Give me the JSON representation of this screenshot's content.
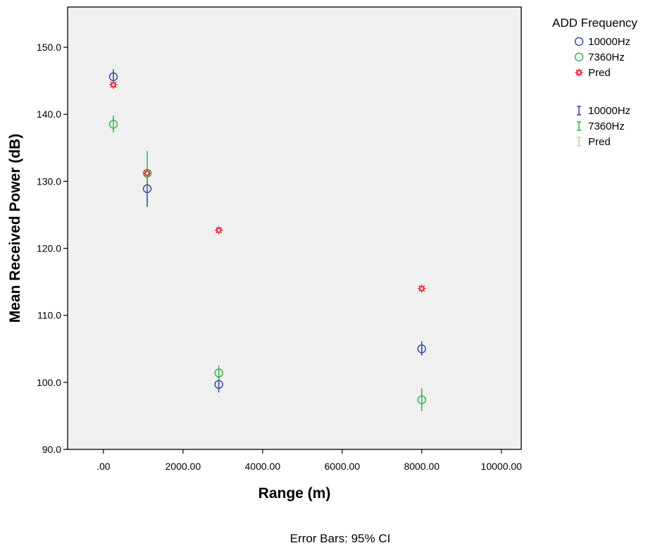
{
  "chart_data": {
    "type": "scatter",
    "xlabel": "Range (m)",
    "ylabel": "Mean Received  Power (dB)",
    "xlim": [
      -900,
      10500
    ],
    "ylim": [
      90,
      156
    ],
    "xticks": [
      0,
      2000,
      4000,
      6000,
      8000,
      10000
    ],
    "xtick_labels": [
      ".00",
      "2000.00",
      "4000.00",
      "6000.00",
      "8000.00",
      "10000.00"
    ],
    "yticks": [
      90,
      100,
      110,
      120,
      130,
      140,
      150
    ],
    "ytick_labels": [
      "90.0",
      "100.0",
      "110.0",
      "120.0",
      "130.0",
      "140.0",
      "150.0"
    ],
    "grid": false,
    "legend_title": "ADD Frequency",
    "legend_position": "right",
    "footnote": "Error Bars: 95% CI",
    "series": [
      {
        "name": "10000Hz",
        "marker": "circle",
        "color": "#3b4ba8",
        "x": [
          250,
          1100,
          2900,
          8000
        ],
        "y": [
          145.6,
          128.9,
          99.7,
          105.0
        ],
        "ci_low": [
          144.6,
          126.2,
          98.5,
          104.0
        ],
        "ci_high": [
          146.7,
          131.1,
          100.8,
          106.1
        ]
      },
      {
        "name": "7360Hz",
        "marker": "circle",
        "color": "#3cb44b",
        "x": [
          250,
          1100,
          2900,
          8000
        ],
        "y": [
          138.5,
          131.2,
          101.4,
          97.4
        ],
        "ci_low": [
          137.3,
          128.8,
          100.3,
          95.7
        ],
        "ci_high": [
          139.8,
          134.5,
          102.5,
          99.1
        ]
      },
      {
        "name": "Pred",
        "marker": "star",
        "color": "#e8343c",
        "x": [
          250,
          1100,
          2900,
          8000
        ],
        "y": [
          144.4,
          131.2,
          122.7,
          114.0
        ]
      }
    ],
    "errorbar_legend": [
      {
        "name": "10000Hz",
        "color": "#3b4ba8"
      },
      {
        "name": "7360Hz",
        "color": "#3cb44b"
      },
      {
        "name": "Pred",
        "color": "#d8c9a0"
      }
    ]
  }
}
